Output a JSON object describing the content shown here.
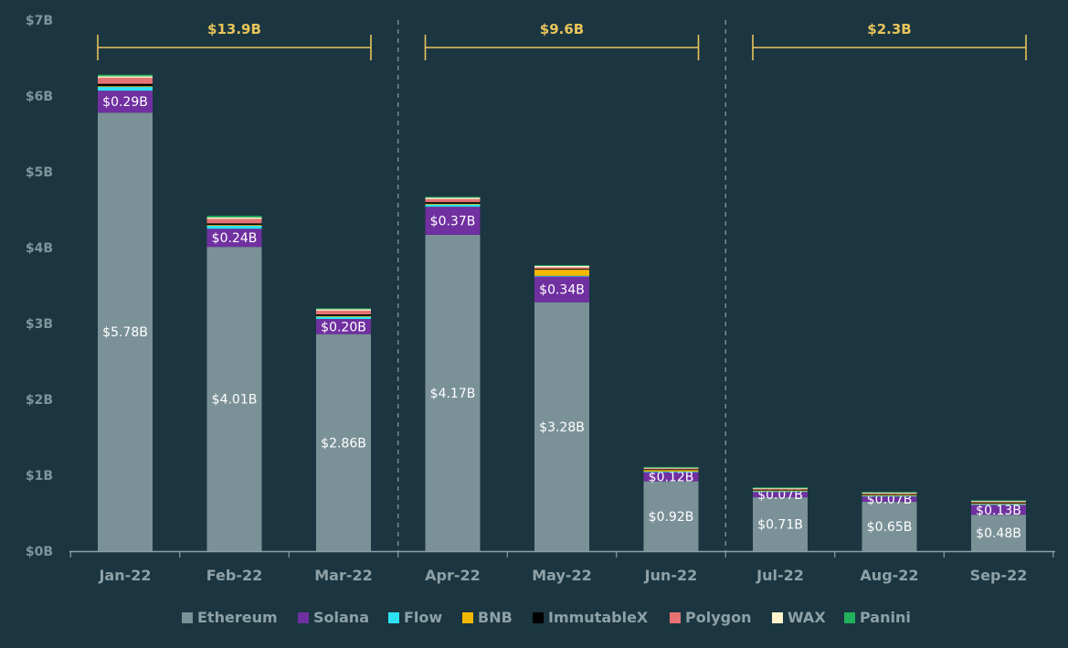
{
  "chart_data": {
    "type": "bar",
    "stacked": true,
    "categories": [
      "Jan-22",
      "Feb-22",
      "Mar-22",
      "Apr-22",
      "May-22",
      "Jun-22",
      "Jul-22",
      "Aug-22",
      "Sep-22"
    ],
    "ylim": [
      0,
      7
    ],
    "yticks": [
      {
        "value": 0,
        "label": "$0B"
      },
      {
        "value": 1,
        "label": "$1B"
      },
      {
        "value": 2,
        "label": "$2B"
      },
      {
        "value": 3,
        "label": "$3B"
      },
      {
        "value": 4,
        "label": "$4B"
      },
      {
        "value": 5,
        "label": "$5B"
      },
      {
        "value": 6,
        "label": "$6B"
      },
      {
        "value": 7,
        "label": "$7B"
      }
    ],
    "series": [
      {
        "name": "Ethereum",
        "color": "#7a9197",
        "values": [
          5.78,
          4.01,
          2.86,
          4.17,
          3.28,
          0.92,
          0.71,
          0.65,
          0.48
        ],
        "labels": [
          "$5.78B",
          "$4.01B",
          "$2.86B",
          "$4.17B",
          "$3.28B",
          "$0.92B",
          "$0.71B",
          "$0.65B",
          "$0.48B"
        ]
      },
      {
        "name": "Solana",
        "color": "#7030a0",
        "values": [
          0.29,
          0.24,
          0.2,
          0.37,
          0.34,
          0.12,
          0.07,
          0.07,
          0.13
        ],
        "labels": [
          "$0.29B",
          "$0.24B",
          "$0.20B",
          "$0.37B",
          "$0.34B",
          "$0.12B",
          "$0.07B",
          "$0.07B",
          "$0.13B"
        ]
      },
      {
        "name": "Flow",
        "color": "#2de2f0",
        "values": [
          0.05,
          0.04,
          0.03,
          0.03,
          0.01,
          0.01,
          0.01,
          0.01,
          0.01
        ],
        "labels": []
      },
      {
        "name": "BNB",
        "color": "#f5b800",
        "values": [
          0.01,
          0.01,
          0.01,
          0.01,
          0.08,
          0.02,
          0.01,
          0.01,
          0.01
        ],
        "labels": []
      },
      {
        "name": "ImmutableX",
        "color": "#000000",
        "values": [
          0.03,
          0.02,
          0.02,
          0.02,
          0.01,
          0.01,
          0.01,
          0.01,
          0.01
        ],
        "labels": []
      },
      {
        "name": "Polygon",
        "color": "#e57373",
        "values": [
          0.08,
          0.06,
          0.05,
          0.04,
          0.02,
          0.01,
          0.01,
          0.01,
          0.01
        ],
        "labels": []
      },
      {
        "name": "WAX",
        "color": "#fff4cc",
        "values": [
          0.02,
          0.02,
          0.02,
          0.02,
          0.02,
          0.01,
          0.01,
          0.01,
          0.01
        ],
        "labels": []
      },
      {
        "name": "Panini",
        "color": "#21b15c",
        "values": [
          0.02,
          0.02,
          0.01,
          0.01,
          0.01,
          0.01,
          0.01,
          0.01,
          0.01
        ],
        "labels": []
      }
    ],
    "brackets": [
      {
        "label": "$13.9B",
        "from": "Jan-22",
        "to": "Mar-22"
      },
      {
        "label": "$9.6B",
        "from": "Apr-22",
        "to": "Jun-22"
      },
      {
        "label": "$2.3B",
        "from": "Jul-22",
        "to": "Sep-22"
      }
    ],
    "legend_position": "bottom-center"
  }
}
